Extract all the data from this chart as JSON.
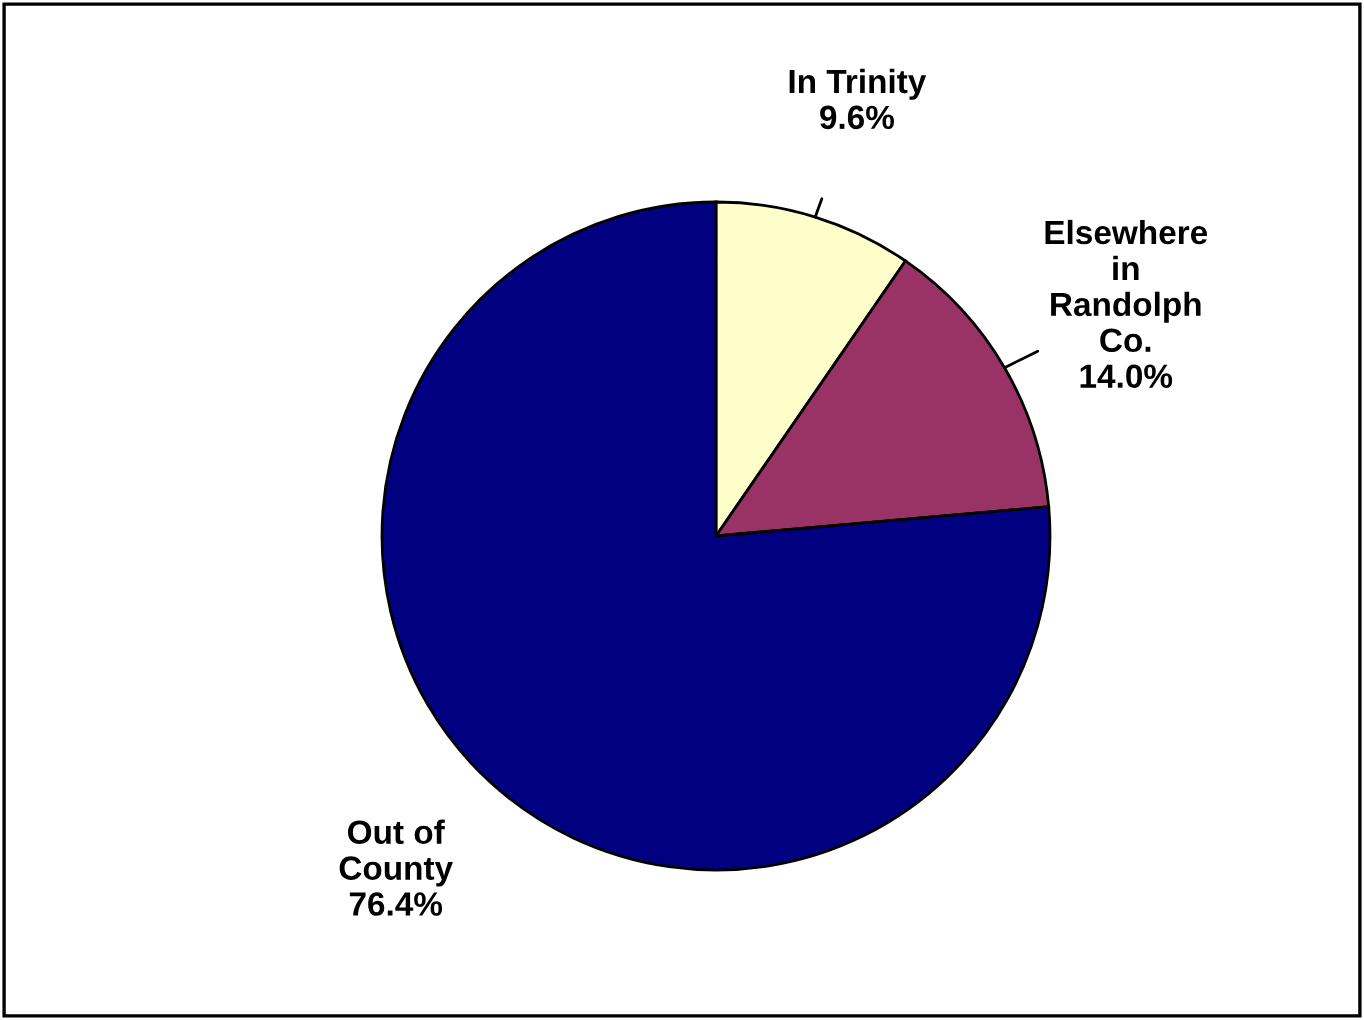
{
  "chart_data": {
    "type": "pie",
    "categories": [
      "In Trinity",
      "Elsewhere\nin\nRandolph\nCo.",
      "Out of\nCounty"
    ],
    "values": [
      9.6,
      14.0,
      76.4
    ],
    "value_labels": [
      "9.6%",
      "14.0%",
      "76.4%"
    ],
    "colors": [
      "#ffffcc",
      "#993366",
      "#000080"
    ],
    "legend": false
  }
}
